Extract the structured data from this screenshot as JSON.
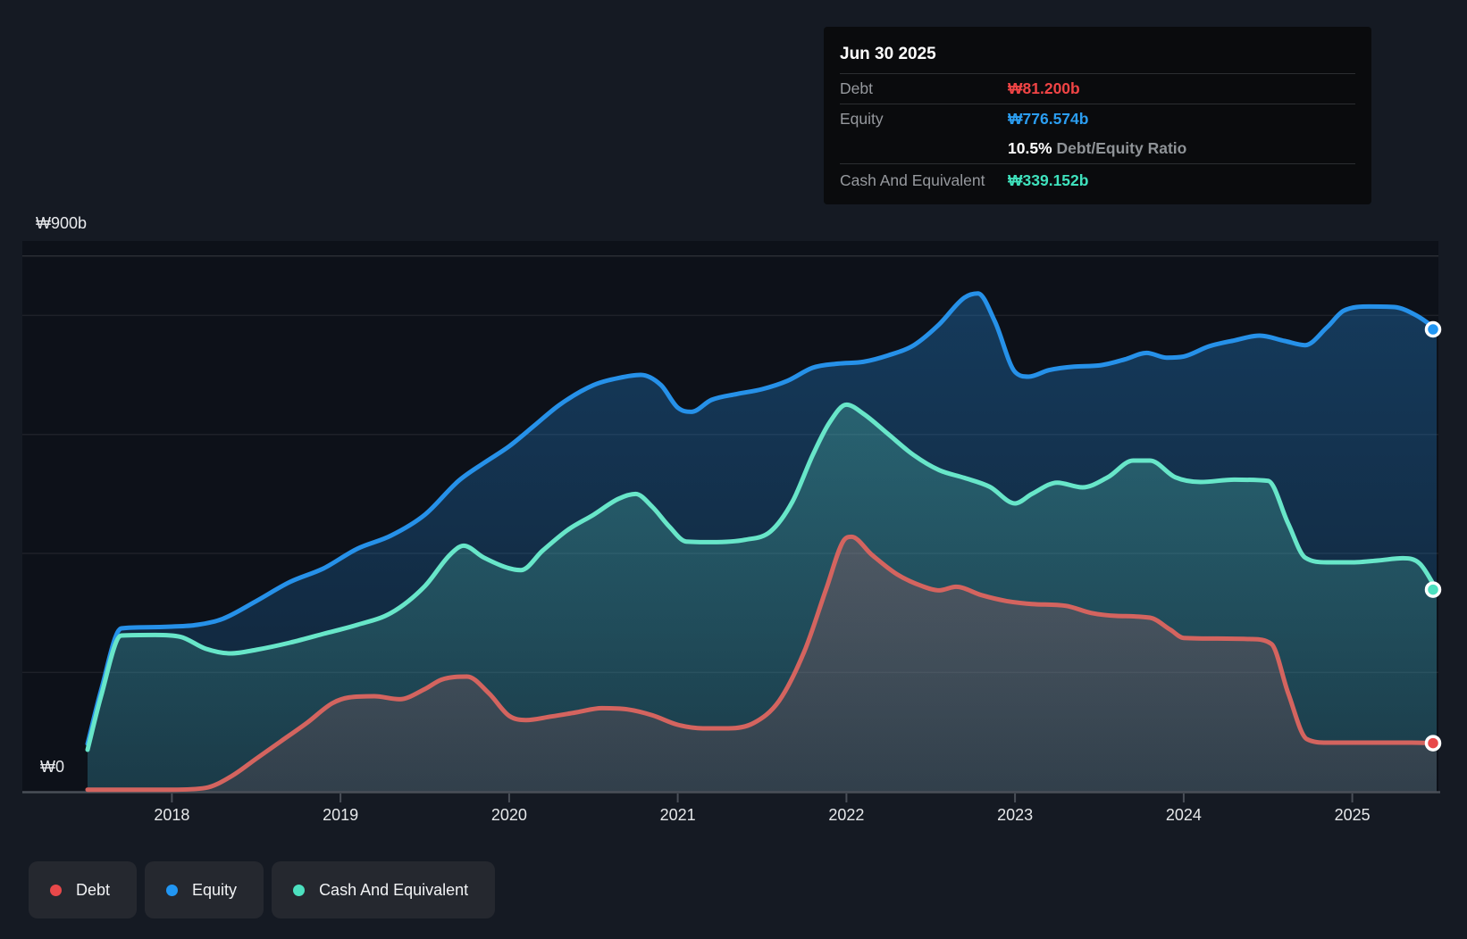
{
  "tooltip": {
    "date": "Jun 30 2025",
    "debt_label": "Debt",
    "debt_value": "₩81.200b",
    "equity_label": "Equity",
    "equity_value": "₩776.574b",
    "ratio_value": "10.5%",
    "ratio_label": "Debt/Equity Ratio",
    "cash_label": "Cash And Equivalent",
    "cash_value": "₩339.152b"
  },
  "legend": {
    "items": [
      {
        "label": "Debt",
        "color": "#e8484a"
      },
      {
        "label": "Equity",
        "color": "#2196f3"
      },
      {
        "label": "Cash And Equivalent",
        "color": "#4ce0bf"
      }
    ]
  },
  "axis": {
    "y_max_label": "₩900b",
    "y_min_label": "₩0",
    "years": [
      "2018",
      "2019",
      "2020",
      "2021",
      "2022",
      "2023",
      "2024",
      "2025"
    ]
  },
  "colors": {
    "background": "#151a23",
    "plot_background": "#0d1119",
    "debt_line": "#d4645f",
    "debt_accent": "#e8484a",
    "equity_line": "#2691e9",
    "equity_accent": "#2196f3",
    "cash_line": "#68e6c9",
    "cash_accent": "#40e0bc",
    "gridline": "rgba(255,255,255,0.07)",
    "axis_line": "#4a4f58"
  },
  "chart_data": {
    "type": "area",
    "title": "Debt to Equity History",
    "x_range": [
      2017.5,
      2025.5
    ],
    "ylim": [
      0,
      900
    ],
    "y_unit": "₩ billions",
    "grid": true,
    "y_gridline_values": [
      200,
      400,
      600,
      800,
      900
    ],
    "x_tick_years": [
      2018,
      2019,
      2020,
      2021,
      2022,
      2023,
      2024,
      2025
    ],
    "legend_position": "bottom-left",
    "series": [
      {
        "id": "equity",
        "name": "Equity",
        "color": "#2691e9",
        "fill_top": "rgba(38,145,232,0.32)",
        "fill_bottom": "rgba(38,145,232,0.14)",
        "end_value": 776.574,
        "points": [
          [
            2017.5,
            80
          ],
          [
            2017.58,
            170
          ],
          [
            2017.7,
            274
          ],
          [
            2017.85,
            276
          ],
          [
            2018.0,
            277
          ],
          [
            2018.15,
            280
          ],
          [
            2018.3,
            290
          ],
          [
            2018.5,
            320
          ],
          [
            2018.7,
            352
          ],
          [
            2018.9,
            375
          ],
          [
            2019.1,
            408
          ],
          [
            2019.3,
            430
          ],
          [
            2019.5,
            465
          ],
          [
            2019.7,
            522
          ],
          [
            2019.85,
            552
          ],
          [
            2020.0,
            580
          ],
          [
            2020.15,
            615
          ],
          [
            2020.3,
            650
          ],
          [
            2020.5,
            683
          ],
          [
            2020.65,
            695
          ],
          [
            2020.78,
            700
          ],
          [
            2020.9,
            683
          ],
          [
            2021.0,
            645
          ],
          [
            2021.08,
            638
          ],
          [
            2021.2,
            658
          ],
          [
            2021.35,
            668
          ],
          [
            2021.5,
            676
          ],
          [
            2021.65,
            690
          ],
          [
            2021.8,
            712
          ],
          [
            2021.95,
            719
          ],
          [
            2022.1,
            722
          ],
          [
            2022.25,
            733
          ],
          [
            2022.4,
            750
          ],
          [
            2022.55,
            785
          ],
          [
            2022.7,
            830
          ],
          [
            2022.78,
            837
          ],
          [
            2022.88,
            790
          ],
          [
            2023.0,
            705
          ],
          [
            2023.08,
            697
          ],
          [
            2023.2,
            708
          ],
          [
            2023.35,
            714
          ],
          [
            2023.5,
            716
          ],
          [
            2023.65,
            726
          ],
          [
            2023.78,
            737
          ],
          [
            2023.9,
            729
          ],
          [
            2024.0,
            731
          ],
          [
            2024.15,
            748
          ],
          [
            2024.3,
            758
          ],
          [
            2024.45,
            766
          ],
          [
            2024.6,
            757
          ],
          [
            2024.72,
            750
          ],
          [
            2024.85,
            780
          ],
          [
            2024.95,
            808
          ],
          [
            2025.1,
            815
          ],
          [
            2025.25,
            814
          ],
          [
            2025.38,
            800
          ],
          [
            2025.5,
            776.574
          ]
        ]
      },
      {
        "id": "cash",
        "name": "Cash And Equivalent",
        "color": "#68e6c9",
        "fill_top": "rgba(98,227,197,0.26)",
        "fill_bottom": "rgba(98,227,197,0.12)",
        "end_value": 339.152,
        "points": [
          [
            2017.5,
            70
          ],
          [
            2017.58,
            160
          ],
          [
            2017.7,
            262
          ],
          [
            2017.9,
            263
          ],
          [
            2018.05,
            260
          ],
          [
            2018.2,
            240
          ],
          [
            2018.35,
            232
          ],
          [
            2018.5,
            238
          ],
          [
            2018.7,
            250
          ],
          [
            2018.9,
            265
          ],
          [
            2019.1,
            280
          ],
          [
            2019.3,
            300
          ],
          [
            2019.5,
            345
          ],
          [
            2019.65,
            398
          ],
          [
            2019.73,
            413
          ],
          [
            2019.85,
            393
          ],
          [
            2020.0,
            375
          ],
          [
            2020.07,
            372
          ],
          [
            2020.2,
            405
          ],
          [
            2020.35,
            440
          ],
          [
            2020.5,
            465
          ],
          [
            2020.65,
            492
          ],
          [
            2020.75,
            500
          ],
          [
            2020.85,
            478
          ],
          [
            2020.95,
            445
          ],
          [
            2021.05,
            420
          ],
          [
            2021.2,
            419
          ],
          [
            2021.4,
            423
          ],
          [
            2021.55,
            437
          ],
          [
            2021.68,
            487
          ],
          [
            2021.8,
            565
          ],
          [
            2021.9,
            620
          ],
          [
            2022.0,
            650
          ],
          [
            2022.1,
            635
          ],
          [
            2022.25,
            600
          ],
          [
            2022.4,
            565
          ],
          [
            2022.55,
            540
          ],
          [
            2022.7,
            527
          ],
          [
            2022.85,
            512
          ],
          [
            2023.0,
            484
          ],
          [
            2023.1,
            500
          ],
          [
            2023.25,
            519
          ],
          [
            2023.4,
            511
          ],
          [
            2023.55,
            528
          ],
          [
            2023.7,
            556
          ],
          [
            2023.8,
            556
          ],
          [
            2023.95,
            528
          ],
          [
            2024.1,
            520
          ],
          [
            2024.3,
            524
          ],
          [
            2024.5,
            522
          ],
          [
            2024.62,
            450
          ],
          [
            2024.72,
            393
          ],
          [
            2024.85,
            385
          ],
          [
            2025.0,
            385
          ],
          [
            2025.15,
            388
          ],
          [
            2025.3,
            392
          ],
          [
            2025.4,
            383
          ],
          [
            2025.5,
            339.152
          ]
        ]
      },
      {
        "id": "debt",
        "name": "Debt",
        "color": "#d4645f",
        "fill_top": "rgba(214,99,99,0.24)",
        "fill_bottom": "rgba(214,99,99,0.12)",
        "end_value": 81.2,
        "points": [
          [
            2017.5,
            3
          ],
          [
            2017.8,
            3
          ],
          [
            2018.0,
            3
          ],
          [
            2018.2,
            6
          ],
          [
            2018.35,
            25
          ],
          [
            2018.5,
            55
          ],
          [
            2018.65,
            85
          ],
          [
            2018.8,
            115
          ],
          [
            2018.95,
            148
          ],
          [
            2019.05,
            158
          ],
          [
            2019.2,
            160
          ],
          [
            2019.35,
            155
          ],
          [
            2019.5,
            172
          ],
          [
            2019.6,
            188
          ],
          [
            2019.75,
            193
          ],
          [
            2019.88,
            165
          ],
          [
            2020.0,
            127
          ],
          [
            2020.1,
            120
          ],
          [
            2020.25,
            126
          ],
          [
            2020.4,
            133
          ],
          [
            2020.55,
            140
          ],
          [
            2020.7,
            138
          ],
          [
            2020.85,
            128
          ],
          [
            2021.0,
            112
          ],
          [
            2021.15,
            106
          ],
          [
            2021.3,
            106
          ],
          [
            2021.45,
            115
          ],
          [
            2021.6,
            152
          ],
          [
            2021.75,
            235
          ],
          [
            2021.88,
            340
          ],
          [
            2021.98,
            420
          ],
          [
            2022.03,
            428
          ],
          [
            2022.15,
            398
          ],
          [
            2022.3,
            365
          ],
          [
            2022.45,
            345
          ],
          [
            2022.55,
            338
          ],
          [
            2022.65,
            344
          ],
          [
            2022.8,
            330
          ],
          [
            2022.95,
            320
          ],
          [
            2023.1,
            315
          ],
          [
            2023.3,
            312
          ],
          [
            2023.45,
            300
          ],
          [
            2023.6,
            295
          ],
          [
            2023.8,
            292
          ],
          [
            2023.92,
            272
          ],
          [
            2024.0,
            258
          ],
          [
            2024.2,
            257
          ],
          [
            2024.4,
            256
          ],
          [
            2024.52,
            248
          ],
          [
            2024.62,
            165
          ],
          [
            2024.73,
            88
          ],
          [
            2024.85,
            82
          ],
          [
            2025.0,
            82
          ],
          [
            2025.2,
            82
          ],
          [
            2025.35,
            82
          ],
          [
            2025.5,
            81.2
          ]
        ]
      }
    ]
  }
}
